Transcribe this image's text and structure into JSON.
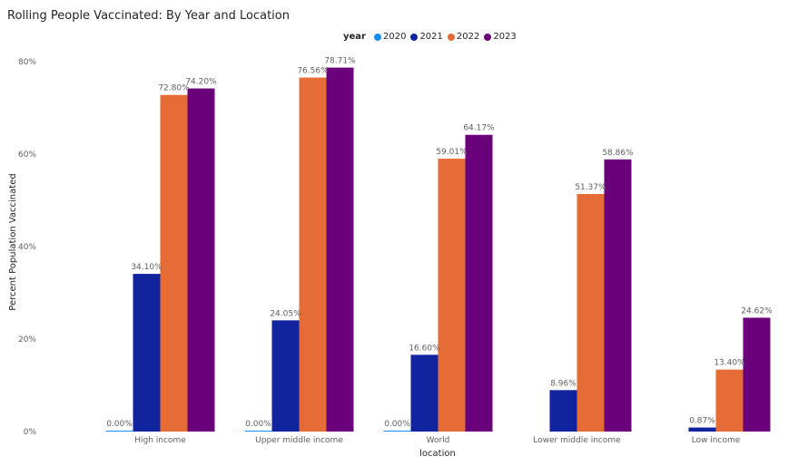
{
  "chart_data": {
    "type": "bar",
    "title": "Rolling People Vaccinated: By Year and Location",
    "xlabel": "location",
    "ylabel": "Percent Population Vaccinated",
    "legend_title": "year",
    "legend_position": "top-center",
    "ylim": [
      0,
      80
    ],
    "yticks": [
      "0%",
      "20%",
      "40%",
      "60%",
      "80%"
    ],
    "ytick_values": [
      0,
      20,
      40,
      60,
      80
    ],
    "grid": false,
    "categories": [
      "High income",
      "Upper middle income",
      "World",
      "Lower middle income",
      "Low income"
    ],
    "series": [
      {
        "name": "2020",
        "color": "#118dff",
        "values": [
          0.0,
          0.0,
          0.0,
          null,
          null
        ],
        "labels": [
          "0.00%",
          "0.00%",
          "0.00%",
          "",
          ""
        ]
      },
      {
        "name": "2021",
        "color": "#12239e",
        "values": [
          34.1,
          24.05,
          16.6,
          8.96,
          0.87
        ],
        "labels": [
          "34.10%",
          "24.05%",
          "16.60%",
          "8.96%",
          "0.87%"
        ]
      },
      {
        "name": "2022",
        "color": "#e66c37",
        "values": [
          72.8,
          76.56,
          59.01,
          51.37,
          13.4
        ],
        "labels": [
          "72.80%",
          "76.56%",
          "59.01%",
          "51.37%",
          "13.40%"
        ]
      },
      {
        "name": "2023",
        "color": "#6b007b",
        "values": [
          74.2,
          78.71,
          64.17,
          58.86,
          24.62
        ],
        "labels": [
          "74.20%",
          "78.71%",
          "64.17%",
          "58.86%",
          "24.62%"
        ]
      }
    ]
  }
}
